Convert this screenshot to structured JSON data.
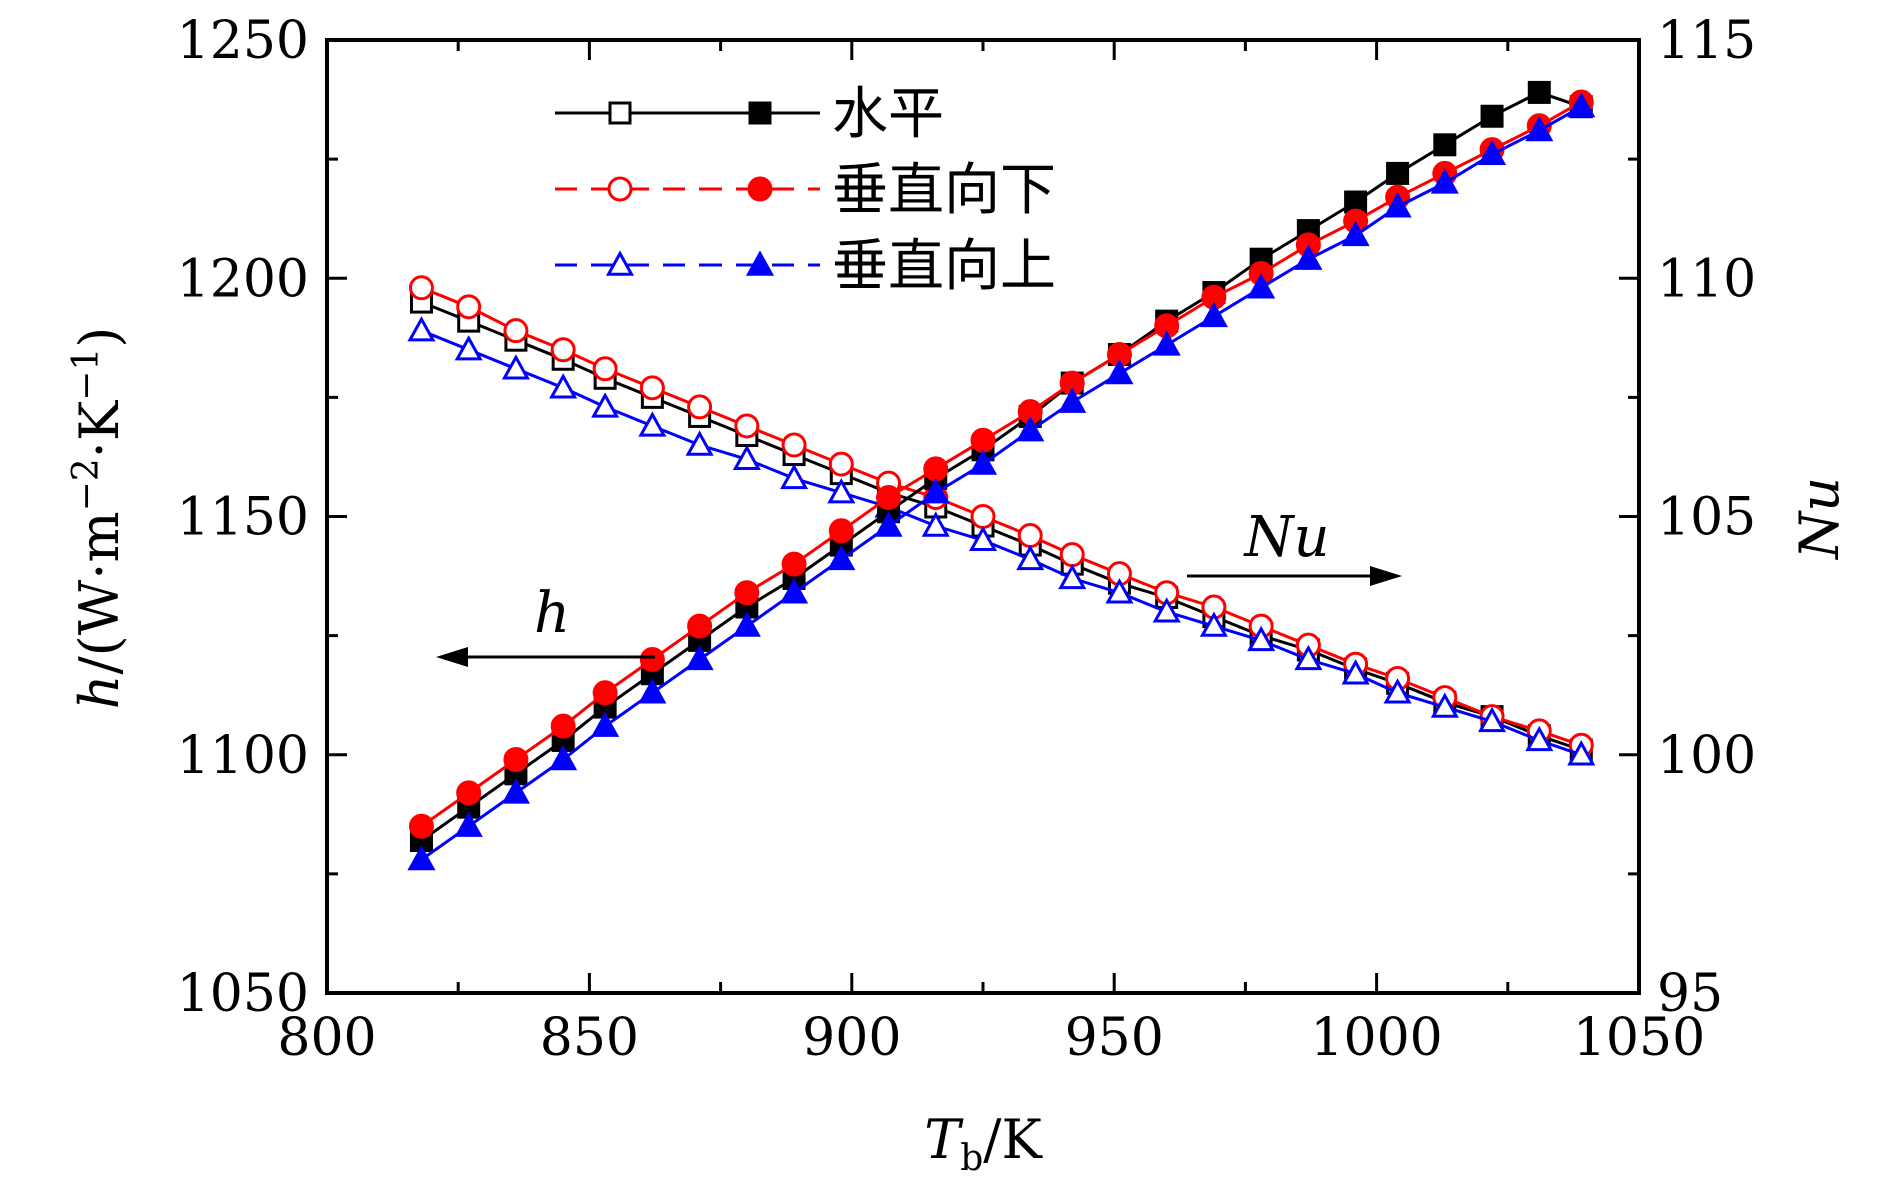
{
  "chart_data": {
    "type": "line",
    "xlabel": "Tb/K",
    "xlabel_main": "T",
    "xlabel_sub": "b",
    "xlabel_rest": "/K",
    "ylabel_left": "h/(W·m−2·K−1)",
    "ylabel_left_parts": {
      "var": "h",
      "pre": "/(W·m",
      "exp1": "−2",
      "mid": "·K",
      "exp2": "−1",
      "post": ")"
    },
    "ylabel_right": "Nu",
    "xlim": [
      800,
      1050
    ],
    "ylim_left": [
      1050,
      1250
    ],
    "ylim_right": [
      95,
      115
    ],
    "xticks": [
      "800",
      "850",
      "900",
      "950",
      "1000",
      "1050"
    ],
    "yticks_left": [
      "1050",
      "1100",
      "1150",
      "1200",
      "1250"
    ],
    "yticks_right": [
      "95",
      "100",
      "105",
      "110",
      "115"
    ],
    "grid": false,
    "legend_position": "top-left",
    "legend": [
      "水平",
      "垂直向下",
      "垂直向上"
    ],
    "annotations": {
      "h_label": "h",
      "h_direction": "left",
      "nu_label": "Nu",
      "nu_direction": "right"
    },
    "x": [
      818,
      827,
      836,
      845,
      853,
      862,
      871,
      880,
      889,
      898,
      907,
      916,
      925,
      934,
      942,
      951,
      960,
      969,
      978,
      987,
      996,
      1004,
      1013,
      1022,
      1031,
      1039
    ],
    "series": [
      {
        "name": "水平",
        "quantity": "h",
        "axis": "left",
        "color": "#000000",
        "marker": "square",
        "filled": false,
        "values": [
          1195,
          1191,
          1187,
          1183,
          1179,
          1175,
          1171,
          1167,
          1163,
          1159,
          1155,
          1152,
          1148,
          1144,
          1140,
          1136,
          1133,
          1129,
          1125,
          1122,
          1118,
          1115,
          1111,
          1108,
          1104,
          1101
        ]
      },
      {
        "name": "垂直向下",
        "quantity": "h",
        "axis": "left",
        "color": "#ff0000",
        "marker": "circle",
        "filled": false,
        "values": [
          1198,
          1194,
          1189,
          1185,
          1181,
          1177,
          1173,
          1169,
          1165,
          1161,
          1157,
          1154,
          1150,
          1146,
          1142,
          1138,
          1134,
          1131,
          1127,
          1123,
          1119,
          1116,
          1112,
          1108,
          1105,
          1102
        ]
      },
      {
        "name": "垂直向上",
        "quantity": "h",
        "axis": "left",
        "color": "#0000ff",
        "marker": "triangle",
        "filled": false,
        "values": [
          1189,
          1185,
          1181,
          1177,
          1173,
          1169,
          1165,
          1162,
          1158,
          1155,
          1152,
          1148,
          1145,
          1141,
          1137,
          1134,
          1130,
          1127,
          1124,
          1120,
          1117,
          1113,
          1110,
          1107,
          1103,
          1100
        ]
      },
      {
        "name": "水平",
        "quantity": "Nu",
        "axis": "right",
        "color": "#000000",
        "marker": "square",
        "filled": true,
        "values": [
          98.2,
          98.9,
          99.6,
          100.3,
          101.0,
          101.7,
          102.4,
          103.1,
          103.7,
          104.4,
          105.1,
          105.8,
          106.4,
          107.1,
          107.8,
          108.4,
          109.1,
          109.7,
          110.4,
          111.0,
          111.6,
          112.2,
          112.8,
          113.4,
          113.9,
          113.6
        ]
      },
      {
        "name": "垂直向下",
        "quantity": "Nu",
        "axis": "right",
        "color": "#ff0000",
        "marker": "circle",
        "filled": true,
        "values": [
          98.5,
          99.2,
          99.9,
          100.6,
          101.3,
          102.0,
          102.7,
          103.4,
          104.0,
          104.7,
          105.4,
          106.0,
          106.6,
          107.2,
          107.8,
          108.4,
          109.0,
          109.6,
          110.1,
          110.7,
          111.2,
          111.7,
          112.2,
          112.7,
          113.2,
          113.7
        ]
      },
      {
        "name": "垂直向上",
        "quantity": "Nu",
        "axis": "right",
        "color": "#0000ff",
        "marker": "triangle",
        "filled": true,
        "values": [
          97.8,
          98.5,
          99.2,
          99.9,
          100.6,
          101.3,
          102.0,
          102.7,
          103.4,
          104.1,
          104.8,
          105.5,
          106.1,
          106.8,
          107.4,
          108.0,
          108.6,
          109.2,
          109.8,
          110.4,
          110.9,
          111.5,
          112.0,
          112.6,
          113.1,
          113.6
        ]
      }
    ]
  }
}
